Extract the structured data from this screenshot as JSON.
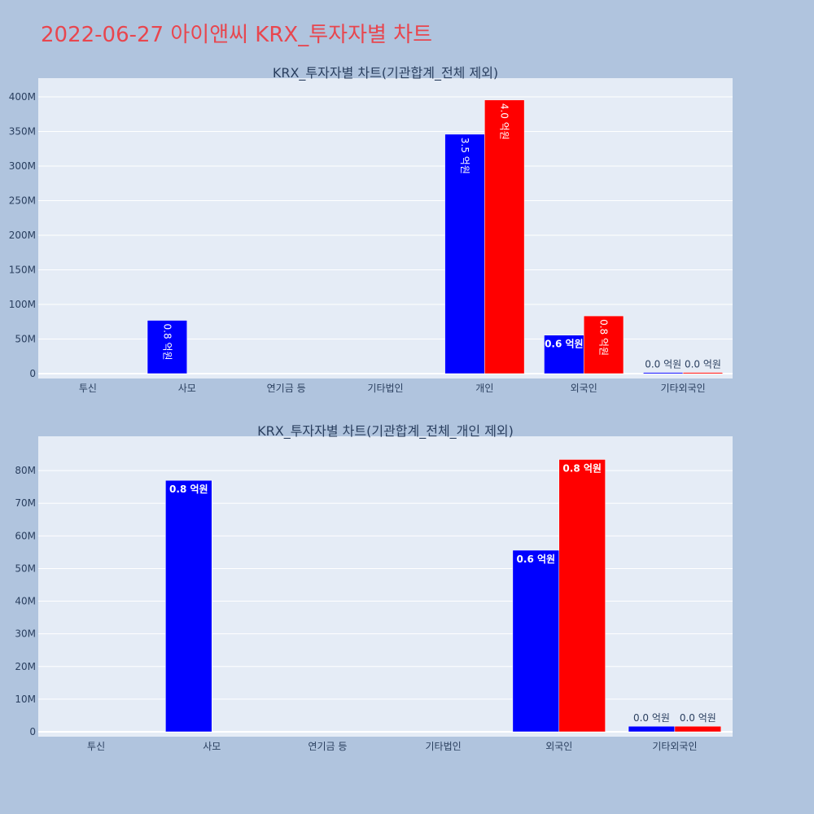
{
  "page_title": "2022-06-27 아이앤씨 KRX_투자자별 차트",
  "colors": {
    "background": "#b0c4de",
    "plot_bg": "#e5ecf6",
    "title": "#e8464e",
    "text": "#2a3f5f",
    "buy": "#0000ff",
    "sell": "#ff0000"
  },
  "chart_data": [
    {
      "type": "bar",
      "title": "KRX_투자자별 차트(기관합계_전체 제외)",
      "categories": [
        "투신",
        "사모",
        "연기금 등",
        "기타법인",
        "개인",
        "외국인",
        "기타외국인"
      ],
      "series": [
        {
          "color": "#0000ff",
          "values": [
            0,
            77000000,
            0,
            0,
            346000000,
            55600000,
            1700000
          ],
          "labels": [
            "",
            "0.8 억원",
            "",
            "",
            "3.5 억원",
            "0.6 억원",
            "0.0 억원"
          ]
        },
        {
          "color": "#ff0000",
          "values": [
            0,
            0,
            0,
            0,
            395500000,
            83400000,
            1700000
          ],
          "labels": [
            "",
            "",
            "",
            "",
            "4.0 억원",
            "0.8 억원",
            "0.0 억원"
          ]
        }
      ],
      "ylim": [
        0,
        420000000
      ],
      "yticks": [
        0,
        50000000,
        100000000,
        150000000,
        200000000,
        250000000,
        300000000,
        350000000,
        400000000
      ],
      "ytick_labels": [
        "0",
        "50M",
        "100M",
        "150M",
        "200M",
        "250M",
        "300M",
        "350M",
        "400M"
      ],
      "grid": true,
      "xlabel": "",
      "ylabel": ""
    },
    {
      "type": "bar",
      "title": "KRX_투자자별 차트(기관합계_전체_개인 제외)",
      "categories": [
        "투신",
        "사모",
        "연기금 등",
        "기타법인",
        "외국인",
        "기타외국인"
      ],
      "series": [
        {
          "color": "#0000ff",
          "values": [
            0,
            77000000,
            0,
            0,
            55600000,
            1700000
          ],
          "labels": [
            "",
            "0.8 억원",
            "",
            "",
            "0.6 억원",
            "0.0 억원"
          ]
        },
        {
          "color": "#ff0000",
          "values": [
            0,
            0,
            0,
            0,
            83400000,
            1700000
          ],
          "labels": [
            "",
            "",
            "",
            "",
            "0.8 억원",
            "0.0 억원"
          ]
        }
      ],
      "ylim": [
        0,
        89000000
      ],
      "yticks": [
        0,
        10000000,
        20000000,
        30000000,
        40000000,
        50000000,
        60000000,
        70000000,
        80000000
      ],
      "ytick_labels": [
        "0",
        "10M",
        "20M",
        "30M",
        "40M",
        "50M",
        "60M",
        "70M",
        "80M"
      ],
      "grid": true,
      "xlabel": "",
      "ylabel": ""
    }
  ]
}
